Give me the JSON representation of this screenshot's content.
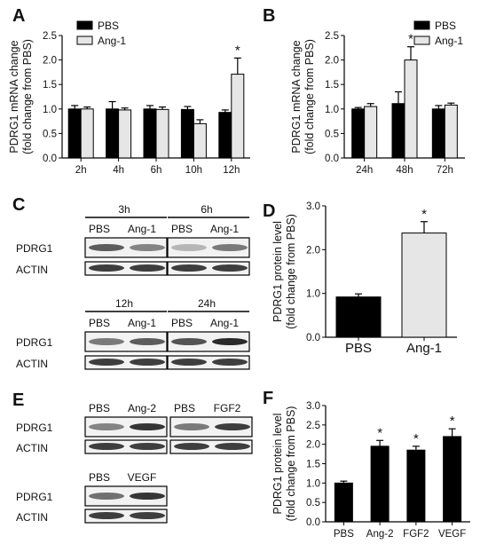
{
  "panels": {
    "A": "A",
    "B": "B",
    "C": "C",
    "D": "D",
    "E": "E",
    "F": "F"
  },
  "colors": {
    "pbs": "#000000",
    "ang1": "#e6e6e6",
    "stroke": "#000000",
    "blot_band": "#2a2a2a"
  },
  "chart_data": [
    {
      "panel": "A",
      "type": "bar",
      "categories": [
        "2h",
        "4h",
        "6h",
        "10h",
        "12h"
      ],
      "series": [
        {
          "name": "PBS",
          "values": [
            1.0,
            1.0,
            1.0,
            0.99,
            0.93
          ],
          "errors": [
            0.07,
            0.15,
            0.07,
            0.06,
            0.05
          ]
        },
        {
          "name": "Ang-1",
          "values": [
            1.0,
            0.98,
            0.99,
            0.7,
            1.71
          ],
          "errors": [
            0.04,
            0.04,
            0.05,
            0.08,
            0.33
          ]
        }
      ],
      "significance": [
        "",
        "",
        "",
        "",
        "*"
      ],
      "ylabel": [
        "PDRG1 mRNA change",
        "(fold change from PBS)"
      ],
      "ylim": [
        0,
        2.5
      ],
      "yticks": [
        "0.0",
        "0.5",
        "1.0",
        "1.5",
        "2.0",
        "2.5"
      ],
      "legend": "top-left"
    },
    {
      "panel": "B",
      "type": "bar",
      "categories": [
        "24h",
        "48h",
        "72h"
      ],
      "series": [
        {
          "name": "PBS",
          "values": [
            1.0,
            1.11,
            1.0
          ],
          "errors": [
            0.03,
            0.24,
            0.07
          ]
        },
        {
          "name": "Ang-1",
          "values": [
            1.05,
            2.0,
            1.08
          ],
          "errors": [
            0.06,
            0.27,
            0.04
          ]
        }
      ],
      "significance": [
        "",
        "*",
        ""
      ],
      "ylabel": [
        "PDRG1 mRNA change",
        "(fold change from PBS)"
      ],
      "ylim": [
        0,
        2.5
      ],
      "yticks": [
        "0.0",
        "0.5",
        "1.0",
        "1.5",
        "2.0",
        "2.5"
      ],
      "legend": "top-right"
    },
    {
      "panel": "D",
      "type": "bar",
      "categories": [
        "PBS",
        "Ang-1"
      ],
      "values": [
        0.92,
        2.38
      ],
      "errors": [
        0.07,
        0.26
      ],
      "bar_colors": [
        "#000000",
        "#e6e6e6"
      ],
      "significance": [
        "",
        "*"
      ],
      "ylabel": [
        "PDRG1 protein level",
        "(fold change from PBS)"
      ],
      "ylim": [
        0,
        3.0
      ],
      "yticks": [
        "0.0",
        "1.0",
        "2.0",
        "3.0"
      ]
    },
    {
      "panel": "F",
      "type": "bar",
      "categories": [
        "PBS",
        "Ang-2",
        "FGF2",
        "VEGF"
      ],
      "values": [
        1.0,
        1.95,
        1.85,
        2.2
      ],
      "errors": [
        0.05,
        0.15,
        0.1,
        0.2
      ],
      "bar_colors": [
        "#000000",
        "#000000",
        "#000000",
        "#000000"
      ],
      "significance": [
        "",
        "*",
        "*",
        "*"
      ],
      "ylabel": [
        "PDRG1 protein level",
        "(fold change from PBS)"
      ],
      "ylim": [
        0,
        3.0
      ],
      "yticks": [
        "0.0",
        "0.5",
        "1.0",
        "1.5",
        "2.0",
        "2.5",
        "3.0"
      ]
    }
  ],
  "blots": {
    "C": {
      "groups": [
        {
          "time": "3h",
          "lanes": [
            "PBS",
            "Ang-1"
          ],
          "pdrg1": [
            0.75,
            0.55
          ],
          "actin": [
            0.9,
            0.9
          ]
        },
        {
          "time": "6h",
          "lanes": [
            "PBS",
            "Ang-1"
          ],
          "pdrg1": [
            0.3,
            0.6
          ],
          "actin": [
            0.9,
            0.9
          ]
        },
        {
          "time": "12h",
          "lanes": [
            "PBS",
            "Ang-1"
          ],
          "pdrg1": [
            0.6,
            0.75
          ],
          "actin": [
            0.9,
            0.9
          ]
        },
        {
          "time": "24h",
          "lanes": [
            "PBS",
            "Ang-1"
          ],
          "pdrg1": [
            0.8,
            1.0
          ],
          "actin": [
            0.9,
            0.9
          ]
        }
      ],
      "row_labels": [
        "PDRG1",
        "ACTIN"
      ]
    },
    "E": {
      "groups": [
        {
          "lanes": [
            "PBS",
            "Ang-2"
          ],
          "pdrg1": [
            0.55,
            0.95
          ],
          "actin": [
            0.9,
            0.9
          ]
        },
        {
          "lanes": [
            "PBS",
            "FGF2"
          ],
          "pdrg1": [
            0.6,
            0.9
          ],
          "actin": [
            0.9,
            0.9
          ]
        },
        {
          "lanes": [
            "PBS",
            "VEGF"
          ],
          "pdrg1": [
            0.65,
            0.95
          ],
          "actin": [
            0.9,
            0.9
          ]
        }
      ],
      "row_labels": [
        "PDRG1",
        "ACTIN"
      ]
    }
  }
}
